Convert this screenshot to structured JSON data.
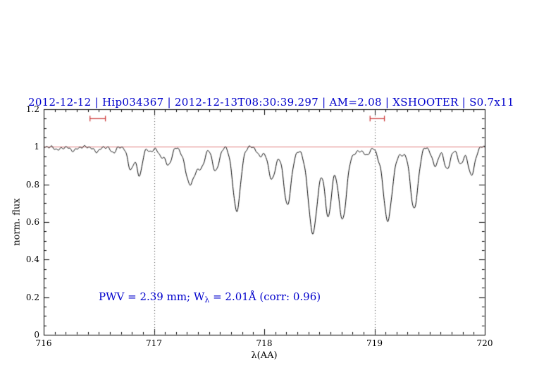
{
  "header": {
    "title": "2012-12-12 | Hip034367 | 2012-12-13T08:30:39.297 | AM=2.08 | XSHOOTER | S0.7x11"
  },
  "annotation": {
    "part1": "PWV = 2.39 mm; W",
    "sub": "λ",
    "part2": " = 2.01Å (corr: 0.96)"
  },
  "colors": {
    "accent_blue": "#0000cc",
    "continuum_red": "#e08080",
    "marker_red": "#cc3333",
    "curve_black": "#000000",
    "guide_gray": "#444444"
  },
  "chart_data": {
    "type": "line",
    "title": "2012-12-12 | Hip034367 | 2012-12-13T08:30:39.297 | AM=2.08 | XSHOOTER | S0.7x11",
    "xlabel": "λ(AA)",
    "ylabel": "norm. flux",
    "xlim": [
      716,
      720
    ],
    "ylim": [
      0,
      1.2
    ],
    "xticks": [
      716,
      717,
      718,
      719,
      720
    ],
    "xtick_labels": [
      "716",
      "717",
      "718",
      "719",
      "720"
    ],
    "yticks": [
      0,
      0.2,
      0.4,
      0.6,
      0.8,
      1,
      1.2
    ],
    "ytick_labels": [
      "0",
      "0.2",
      "0.4",
      "0.6",
      "0.8",
      "1",
      "1.2"
    ],
    "minor_x_step": 0.1,
    "minor_y_step": 0.05,
    "grid": false,
    "legend": null,
    "continuum_level": 1.0,
    "dotted_guides_x": [
      717,
      719
    ],
    "range_markers": [
      {
        "x1": 716.42,
        "x2": 716.56,
        "y": 1.15
      },
      {
        "x1": 718.96,
        "x2": 719.09,
        "y": 1.15
      }
    ],
    "absorption_lines": [
      {
        "center": 716.13,
        "depth": 0.015,
        "sigma": 0.03
      },
      {
        "center": 716.27,
        "depth": 0.02,
        "sigma": 0.03
      },
      {
        "center": 716.48,
        "depth": 0.025,
        "sigma": 0.03
      },
      {
        "center": 716.63,
        "depth": 0.03,
        "sigma": 0.025
      },
      {
        "center": 716.79,
        "depth": 0.12,
        "sigma": 0.028
      },
      {
        "center": 716.87,
        "depth": 0.15,
        "sigma": 0.025
      },
      {
        "center": 716.97,
        "depth": 0.03,
        "sigma": 0.02
      },
      {
        "center": 717.06,
        "depth": 0.05,
        "sigma": 0.022
      },
      {
        "center": 717.13,
        "depth": 0.1,
        "sigma": 0.028
      },
      {
        "center": 717.33,
        "depth": 0.2,
        "sigma": 0.045
      },
      {
        "center": 717.43,
        "depth": 0.1,
        "sigma": 0.03
      },
      {
        "center": 717.56,
        "depth": 0.13,
        "sigma": 0.03
      },
      {
        "center": 717.75,
        "depth": 0.34,
        "sigma": 0.035
      },
      {
        "center": 717.96,
        "depth": 0.05,
        "sigma": 0.025
      },
      {
        "center": 718.07,
        "depth": 0.17,
        "sigma": 0.035
      },
      {
        "center": 718.21,
        "depth": 0.3,
        "sigma": 0.035
      },
      {
        "center": 718.44,
        "depth": 0.41,
        "sigma": 0.04
      },
      {
        "center": 718.58,
        "depth": 0.3,
        "sigma": 0.03
      },
      {
        "center": 718.6,
        "depth": 0.07,
        "sigma": 0.18
      },
      {
        "center": 718.71,
        "depth": 0.33,
        "sigma": 0.035
      },
      {
        "center": 718.93,
        "depth": 0.035,
        "sigma": 0.02
      },
      {
        "center": 719.03,
        "depth": 0.025,
        "sigma": 0.018
      },
      {
        "center": 719.12,
        "depth": 0.39,
        "sigma": 0.04
      },
      {
        "center": 719.24,
        "depth": 0.04,
        "sigma": 0.04
      },
      {
        "center": 719.36,
        "depth": 0.33,
        "sigma": 0.035
      },
      {
        "center": 719.55,
        "depth": 0.1,
        "sigma": 0.03
      },
      {
        "center": 719.66,
        "depth": 0.12,
        "sigma": 0.028
      },
      {
        "center": 719.78,
        "depth": 0.09,
        "sigma": 0.028
      },
      {
        "center": 719.88,
        "depth": 0.15,
        "sigma": 0.03
      }
    ]
  }
}
